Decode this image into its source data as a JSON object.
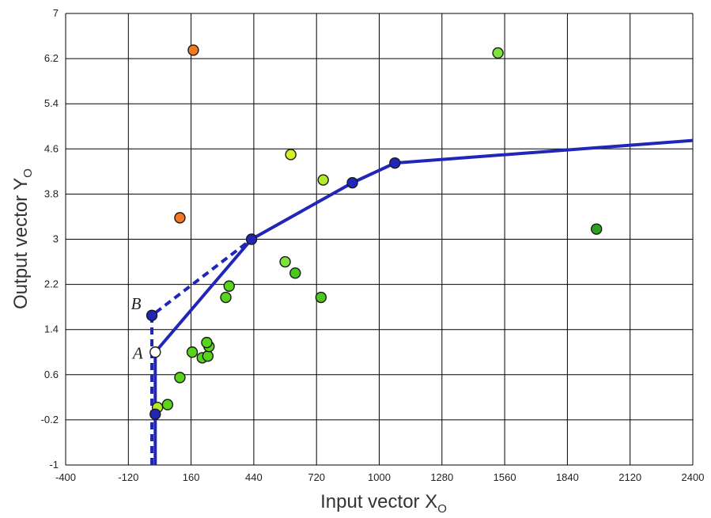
{
  "chart_data": {
    "type": "scatter",
    "xlabel": "Input vector X",
    "xlabel_sub": "O",
    "ylabel": "Output vector Y",
    "ylabel_sub": "O",
    "xlim": [
      -400,
      2400
    ],
    "ylim": [
      -1,
      7
    ],
    "grid": true,
    "x_ticks": [
      -400,
      -120,
      160,
      440,
      720,
      1000,
      1280,
      1560,
      1840,
      2120,
      2400
    ],
    "y_ticks": [
      -1,
      -0.2,
      0.6,
      1.4,
      2.2,
      3,
      3.8,
      4.6,
      5.4,
      6.2,
      7
    ],
    "x_tick_labels": [
      "-400",
      "-120",
      "160",
      "440",
      "720",
      "1000",
      "1280",
      "1560",
      "1840",
      "2120",
      "2400"
    ],
    "y_tick_labels": [
      "-1",
      "-0.2",
      "0.6",
      "1.4",
      "2.2",
      "3",
      "3.8",
      "4.6",
      "5.4",
      "6.2",
      "7"
    ],
    "frontier_solid": [
      {
        "x": 0,
        "y": -1
      },
      {
        "x": 0,
        "y": 0
      },
      {
        "x": 0,
        "y": 1
      },
      {
        "x": 430,
        "y": 3
      },
      {
        "x": 880,
        "y": 4
      },
      {
        "x": 1070,
        "y": 4.35
      },
      {
        "x": 2400,
        "y": 4.75
      }
    ],
    "frontier_dashed": [
      {
        "x": -15,
        "y": -1
      },
      {
        "x": -15,
        "y": 1.65
      },
      {
        "x": 430,
        "y": 3
      }
    ],
    "frontier_points": [
      {
        "x": 0,
        "y": -0.1,
        "fill": "#1f26b8"
      },
      {
        "x": -15,
        "y": 1.65,
        "fill": "#1f26b8"
      },
      {
        "x": 430,
        "y": 3,
        "fill": "#1f26b8"
      },
      {
        "x": 880,
        "y": 4,
        "fill": "#1f26b8"
      },
      {
        "x": 1070,
        "y": 4.35,
        "fill": "#1f26b8"
      },
      {
        "x": 0,
        "y": 1,
        "fill": "#ffffff"
      }
    ],
    "units": [
      {
        "x": 10,
        "y": 0.02,
        "color": "#b4ea2c"
      },
      {
        "x": 55,
        "y": 0.07,
        "color": "#58d41c"
      },
      {
        "x": 110,
        "y": 0.55,
        "color": "#58d41c"
      },
      {
        "x": 165,
        "y": 1.0,
        "color": "#58d41c"
      },
      {
        "x": 210,
        "y": 0.9,
        "color": "#58d41c"
      },
      {
        "x": 235,
        "y": 0.93,
        "color": "#58d41c"
      },
      {
        "x": 240,
        "y": 1.1,
        "color": "#58d41c"
      },
      {
        "x": 230,
        "y": 1.17,
        "color": "#58d41c"
      },
      {
        "x": 315,
        "y": 1.97,
        "color": "#58d41c"
      },
      {
        "x": 330,
        "y": 2.17,
        "color": "#58d41c"
      },
      {
        "x": 580,
        "y": 2.6,
        "color": "#7ee23a"
      },
      {
        "x": 625,
        "y": 2.4,
        "color": "#4cc622"
      },
      {
        "x": 740,
        "y": 1.97,
        "color": "#4cc622"
      },
      {
        "x": 605,
        "y": 4.5,
        "color": "#d6ee2a"
      },
      {
        "x": 750,
        "y": 4.05,
        "color": "#b4ea2c"
      },
      {
        "x": 1530,
        "y": 6.3,
        "color": "#7ee23a"
      },
      {
        "x": 1970,
        "y": 3.18,
        "color": "#2ea022"
      },
      {
        "x": 110,
        "y": 3.38,
        "color": "#f07a22"
      },
      {
        "x": 170,
        "y": 6.35,
        "color": "#f07a22"
      }
    ],
    "labels": [
      {
        "text": "A",
        "x": 0,
        "y": 1
      },
      {
        "text": "B",
        "x": -15,
        "y": 1.65
      }
    ]
  }
}
